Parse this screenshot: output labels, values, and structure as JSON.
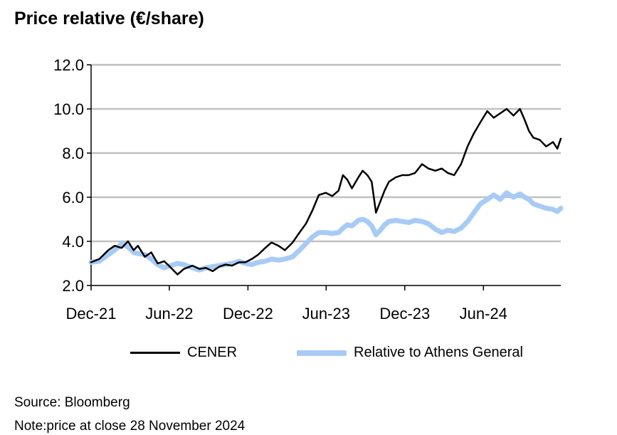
{
  "title": "Price relative (€/share)",
  "chart_data": {
    "type": "line",
    "title": "Price relative (€/share)",
    "xlabel": "",
    "ylabel": "",
    "x_tick_labels": [
      "Dec-21",
      "Jun-22",
      "Dec-22",
      "Jun-23",
      "Dec-23",
      "Jun-24"
    ],
    "y_tick_labels": [
      "2.0",
      "4.0",
      "6.0",
      "8.0",
      "10.0",
      "12.0"
    ],
    "xlim": [
      "2021-12-01",
      "2024-11-28"
    ],
    "ylim": [
      2.0,
      12.0
    ],
    "grid": "horizontal",
    "legend_position": "bottom",
    "series": [
      {
        "name": "CENER",
        "color": "#000000",
        "points": [
          [
            "2021-12-01",
            3.05
          ],
          [
            "2021-12-20",
            3.2
          ],
          [
            "2022-01-10",
            3.6
          ],
          [
            "2022-01-25",
            3.8
          ],
          [
            "2022-02-10",
            3.7
          ],
          [
            "2022-02-25",
            4.0
          ],
          [
            "2022-03-10",
            3.6
          ],
          [
            "2022-03-20",
            3.8
          ],
          [
            "2022-04-05",
            3.3
          ],
          [
            "2022-04-20",
            3.5
          ],
          [
            "2022-05-05",
            3.0
          ],
          [
            "2022-05-20",
            3.1
          ],
          [
            "2022-06-05",
            2.8
          ],
          [
            "2022-06-20",
            2.5
          ],
          [
            "2022-07-05",
            2.75
          ],
          [
            "2022-07-25",
            2.9
          ],
          [
            "2022-08-10",
            2.75
          ],
          [
            "2022-08-25",
            2.8
          ],
          [
            "2022-09-10",
            2.65
          ],
          [
            "2022-09-25",
            2.85
          ],
          [
            "2022-10-10",
            2.95
          ],
          [
            "2022-10-25",
            2.9
          ],
          [
            "2022-11-10",
            3.05
          ],
          [
            "2022-11-25",
            3.05
          ],
          [
            "2022-12-10",
            3.2
          ],
          [
            "2022-12-25",
            3.4
          ],
          [
            "2023-01-10",
            3.7
          ],
          [
            "2023-01-25",
            3.95
          ],
          [
            "2023-02-10",
            3.8
          ],
          [
            "2023-02-25",
            3.6
          ],
          [
            "2023-03-15",
            3.95
          ],
          [
            "2023-03-31",
            4.4
          ],
          [
            "2023-04-15",
            4.8
          ],
          [
            "2023-04-30",
            5.4
          ],
          [
            "2023-05-15",
            6.1
          ],
          [
            "2023-05-31",
            6.2
          ],
          [
            "2023-06-15",
            6.05
          ],
          [
            "2023-06-30",
            6.3
          ],
          [
            "2023-07-10",
            7.0
          ],
          [
            "2023-07-20",
            6.8
          ],
          [
            "2023-07-31",
            6.4
          ],
          [
            "2023-08-15",
            6.9
          ],
          [
            "2023-08-25",
            7.2
          ],
          [
            "2023-09-05",
            7.0
          ],
          [
            "2023-09-15",
            6.7
          ],
          [
            "2023-09-25",
            5.3
          ],
          [
            "2023-10-05",
            5.8
          ],
          [
            "2023-10-15",
            6.3
          ],
          [
            "2023-10-25",
            6.7
          ],
          [
            "2023-11-10",
            6.9
          ],
          [
            "2023-11-25",
            7.0
          ],
          [
            "2023-12-10",
            7.0
          ],
          [
            "2023-12-25",
            7.1
          ],
          [
            "2024-01-10",
            7.5
          ],
          [
            "2024-01-25",
            7.3
          ],
          [
            "2024-02-10",
            7.2
          ],
          [
            "2024-02-25",
            7.3
          ],
          [
            "2024-03-10",
            7.1
          ],
          [
            "2024-03-25",
            7.0
          ],
          [
            "2024-04-10",
            7.5
          ],
          [
            "2024-04-25",
            8.3
          ],
          [
            "2024-05-10",
            8.9
          ],
          [
            "2024-05-25",
            9.4
          ],
          [
            "2024-06-10",
            9.9
          ],
          [
            "2024-06-25",
            9.6
          ],
          [
            "2024-07-10",
            9.8
          ],
          [
            "2024-07-25",
            10.0
          ],
          [
            "2024-08-10",
            9.7
          ],
          [
            "2024-08-25",
            10.0
          ],
          [
            "2024-09-05",
            9.5
          ],
          [
            "2024-09-15",
            9.0
          ],
          [
            "2024-09-25",
            8.7
          ],
          [
            "2024-10-10",
            8.6
          ],
          [
            "2024-10-25",
            8.3
          ],
          [
            "2024-11-10",
            8.5
          ],
          [
            "2024-11-20",
            8.2
          ],
          [
            "2024-11-28",
            8.65
          ]
        ]
      },
      {
        "name": "Relative to Athens General",
        "color": "#a8cbf6",
        "points": [
          [
            "2021-12-01",
            3.05
          ],
          [
            "2021-12-20",
            3.1
          ],
          [
            "2022-01-10",
            3.4
          ],
          [
            "2022-01-25",
            3.6
          ],
          [
            "2022-02-10",
            3.9
          ],
          [
            "2022-02-25",
            3.75
          ],
          [
            "2022-03-10",
            3.5
          ],
          [
            "2022-03-20",
            3.45
          ],
          [
            "2022-04-05",
            3.4
          ],
          [
            "2022-04-20",
            3.2
          ],
          [
            "2022-05-05",
            2.95
          ],
          [
            "2022-05-20",
            2.8
          ],
          [
            "2022-06-05",
            2.9
          ],
          [
            "2022-06-20",
            3.0
          ],
          [
            "2022-07-05",
            2.95
          ],
          [
            "2022-07-25",
            2.8
          ],
          [
            "2022-08-10",
            2.7
          ],
          [
            "2022-08-25",
            2.8
          ],
          [
            "2022-09-10",
            2.85
          ],
          [
            "2022-09-25",
            2.9
          ],
          [
            "2022-10-10",
            2.95
          ],
          [
            "2022-10-25",
            3.0
          ],
          [
            "2022-11-10",
            3.1
          ],
          [
            "2022-11-25",
            3.0
          ],
          [
            "2022-12-10",
            2.95
          ],
          [
            "2022-12-25",
            3.05
          ],
          [
            "2023-01-10",
            3.1
          ],
          [
            "2023-01-25",
            3.2
          ],
          [
            "2023-02-10",
            3.15
          ],
          [
            "2023-02-25",
            3.2
          ],
          [
            "2023-03-15",
            3.3
          ],
          [
            "2023-03-31",
            3.6
          ],
          [
            "2023-04-15",
            3.9
          ],
          [
            "2023-04-30",
            4.2
          ],
          [
            "2023-05-15",
            4.4
          ],
          [
            "2023-05-31",
            4.4
          ],
          [
            "2023-06-15",
            4.35
          ],
          [
            "2023-06-30",
            4.4
          ],
          [
            "2023-07-10",
            4.6
          ],
          [
            "2023-07-20",
            4.75
          ],
          [
            "2023-07-31",
            4.7
          ],
          [
            "2023-08-15",
            4.95
          ],
          [
            "2023-08-25",
            5.0
          ],
          [
            "2023-09-05",
            4.9
          ],
          [
            "2023-09-15",
            4.7
          ],
          [
            "2023-09-25",
            4.3
          ],
          [
            "2023-10-05",
            4.5
          ],
          [
            "2023-10-15",
            4.75
          ],
          [
            "2023-10-25",
            4.9
          ],
          [
            "2023-11-10",
            4.95
          ],
          [
            "2023-11-25",
            4.9
          ],
          [
            "2023-12-10",
            4.85
          ],
          [
            "2023-12-25",
            4.95
          ],
          [
            "2024-01-10",
            4.9
          ],
          [
            "2024-01-25",
            4.8
          ],
          [
            "2024-02-10",
            4.55
          ],
          [
            "2024-02-25",
            4.4
          ],
          [
            "2024-03-10",
            4.5
          ],
          [
            "2024-03-25",
            4.45
          ],
          [
            "2024-04-10",
            4.6
          ],
          [
            "2024-04-25",
            4.9
          ],
          [
            "2024-05-10",
            5.3
          ],
          [
            "2024-05-25",
            5.7
          ],
          [
            "2024-06-10",
            5.9
          ],
          [
            "2024-06-25",
            6.1
          ],
          [
            "2024-07-10",
            5.9
          ],
          [
            "2024-07-25",
            6.2
          ],
          [
            "2024-08-10",
            6.0
          ],
          [
            "2024-08-25",
            6.15
          ],
          [
            "2024-09-05",
            6.0
          ],
          [
            "2024-09-15",
            5.9
          ],
          [
            "2024-09-25",
            5.7
          ],
          [
            "2024-10-10",
            5.6
          ],
          [
            "2024-10-25",
            5.5
          ],
          [
            "2024-11-10",
            5.45
          ],
          [
            "2024-11-20",
            5.35
          ],
          [
            "2024-11-28",
            5.5
          ]
        ]
      }
    ]
  },
  "legend": [
    {
      "label": "CENER",
      "color": "#000000"
    },
    {
      "label": "Relative to Athens General",
      "color": "#a8cbf6"
    }
  ],
  "footer": {
    "source": "Source: Bloomberg",
    "note": "Note:price at close 28 November 2024"
  }
}
